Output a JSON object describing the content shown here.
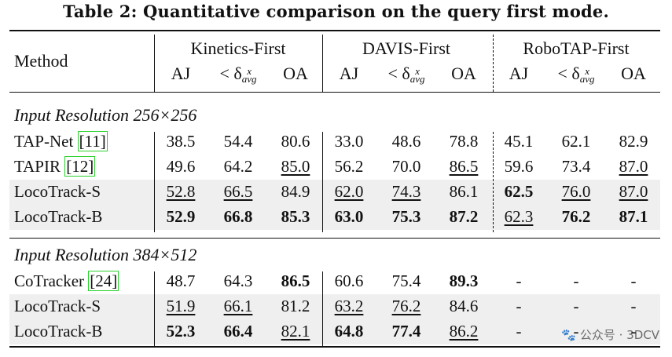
{
  "caption": "Table 2: Quantitative comparison on the query first mode.",
  "header": {
    "method": "Method",
    "groups": [
      "Kinetics-First",
      "DAVIS-First",
      "RoboTAP-First"
    ],
    "metrics": [
      "AJ",
      "< δ",
      "OA"
    ],
    "delta_sup": "x",
    "delta_sub": "avg"
  },
  "sections": [
    {
      "title": "Input Resolution 256×256",
      "rows": [
        {
          "method": "TAP-Net",
          "cite": "11",
          "values": [
            "38.5",
            "54.4",
            "80.6",
            "33.0",
            "48.6",
            "78.8",
            "45.1",
            "62.1",
            "82.9"
          ],
          "bold": [],
          "underline": [],
          "shaded": false
        },
        {
          "method": "TAPIR",
          "cite": "12",
          "values": [
            "49.6",
            "64.2",
            "85.0",
            "56.2",
            "70.0",
            "86.5",
            "59.6",
            "73.4",
            "87.0"
          ],
          "bold": [],
          "underline": [
            2,
            5,
            8
          ],
          "shaded": false
        },
        {
          "method": "LocoTrack-S",
          "cite": "",
          "values": [
            "52.8",
            "66.5",
            "84.9",
            "62.0",
            "74.3",
            "86.1",
            "62.5",
            "76.0",
            "87.0"
          ],
          "bold": [
            6
          ],
          "underline": [
            0,
            1,
            3,
            4,
            7,
            8
          ],
          "shaded": true
        },
        {
          "method": "LocoTrack-B",
          "cite": "",
          "values": [
            "52.9",
            "66.8",
            "85.3",
            "63.0",
            "75.3",
            "87.2",
            "62.3",
            "76.2",
            "87.1"
          ],
          "bold": [
            0,
            1,
            2,
            3,
            4,
            5,
            7,
            8
          ],
          "underline": [
            6
          ],
          "shaded": true
        }
      ]
    },
    {
      "title": "Input Resolution 384×512",
      "rows": [
        {
          "method": "CoTracker",
          "cite": "24",
          "values": [
            "48.7",
            "64.3",
            "86.5",
            "60.6",
            "75.4",
            "89.3",
            "-",
            "-",
            "-"
          ],
          "bold": [
            2,
            5
          ],
          "underline": [],
          "shaded": false
        },
        {
          "method": "LocoTrack-S",
          "cite": "",
          "values": [
            "51.9",
            "66.1",
            "81.2",
            "63.2",
            "76.2",
            "84.6",
            "-",
            "-",
            "-"
          ],
          "bold": [],
          "underline": [
            0,
            1,
            3,
            4
          ],
          "shaded": true
        },
        {
          "method": "LocoTrack-B",
          "cite": "",
          "values": [
            "52.3",
            "66.4",
            "82.1",
            "64.8",
            "77.4",
            "86.2",
            "-",
            "-",
            "-"
          ],
          "bold": [
            0,
            1,
            3,
            4
          ],
          "underline": [
            2,
            5
          ],
          "shaded": true
        }
      ]
    }
  ],
  "watermark": "🐾 公众号 · 3DCV"
}
